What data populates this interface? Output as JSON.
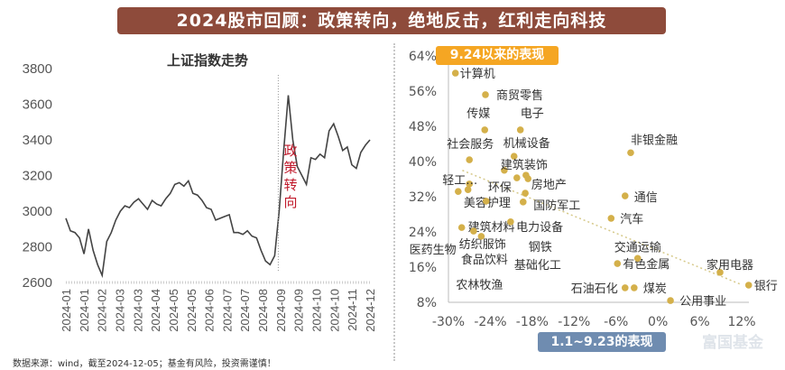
{
  "header": {
    "title": "2024股市回顾：政策转向，绝地反击，红利走向科技"
  },
  "footer": {
    "source": "数据来源：wind，截至2024-12-05；基金有风险，投资需谨慎！"
  },
  "watermark": "富国基金",
  "colors": {
    "banner": "#8e4b3b",
    "line": "#444444",
    "dot": "#d4b04a",
    "annotation": "#c0182a",
    "tag_orange": "#f5a623",
    "tag_blue": "#6f8cb0"
  },
  "chart_data": [
    {
      "type": "line",
      "title": "上证指数走势",
      "ylim": [
        2600,
        3800
      ],
      "yticks": [
        2600,
        2800,
        3000,
        3200,
        3400,
        3600,
        3800
      ],
      "xtick_labels": [
        "2024-01",
        "2024-01",
        "2024-02",
        "2024-03",
        "2024-03",
        "2024-04",
        "2024-05",
        "2024-05",
        "2024-06",
        "2024-07",
        "2024-07",
        "2024-08",
        "2024-09",
        "2024-09",
        "2024-10",
        "2024-10",
        "2024-11",
        "2024-12"
      ],
      "annotation": "政策转向",
      "values": [
        2960,
        2890,
        2880,
        2850,
        2760,
        2900,
        2780,
        2700,
        2640,
        2830,
        2880,
        2950,
        3000,
        3030,
        3020,
        3050,
        3070,
        3040,
        3010,
        3060,
        3040,
        3030,
        3070,
        3100,
        3150,
        3160,
        3140,
        3170,
        3100,
        3090,
        3060,
        3020,
        3010,
        2950,
        2960,
        2970,
        2980,
        2880,
        2880,
        2870,
        2890,
        2860,
        2850,
        2780,
        2720,
        2700,
        2750,
        3000,
        3340,
        3650,
        3400,
        3250,
        3200,
        3150,
        3300,
        3290,
        3320,
        3300,
        3450,
        3490,
        3420,
        3340,
        3360,
        3260,
        3240,
        3330,
        3370,
        3400
      ],
      "policy_turn_index": 47
    },
    {
      "type": "scatter",
      "xlabel": "1.1~9.23的表现",
      "ylabel": "9.24以来的表现",
      "xlim": [
        -30,
        12
      ],
      "ylim": [
        8,
        64
      ],
      "xticks": [
        "-30%",
        "-24%",
        "-18%",
        "-12%",
        "-6%",
        "0%",
        "6%",
        "12%"
      ],
      "yticks": [
        "8%",
        "16%",
        "24%",
        "32%",
        "40%",
        "48%",
        "56%",
        "64%"
      ],
      "trendline": {
        "from": [
          -28,
          38
        ],
        "to": [
          12,
          12
        ]
      },
      "points": [
        {
          "label": "计算机",
          "x": -29.0,
          "y": 60.1
        },
        {
          "label": "商贸零售",
          "x": -24.7,
          "y": 55.2
        },
        {
          "label": "传媒",
          "x": -24.8,
          "y": 47.2
        },
        {
          "label": "电子",
          "x": -19.7,
          "y": 47.2
        },
        {
          "label": "社会服务",
          "x": -27.0,
          "y": 40.4
        },
        {
          "label": "机械设备",
          "x": -20.6,
          "y": 41.2
        },
        {
          "label": "非银金融",
          "x": -3.9,
          "y": 42.0
        },
        {
          "label": "建筑装饰",
          "x": -22.0,
          "y": 38.0
        },
        {
          "label": "房地产",
          "x": -18.9,
          "y": 36.9
        },
        {
          "label": "环保",
          "x": -20.2,
          "y": 36.3
        },
        {
          "label": "国防军工",
          "x": -18.6,
          "y": 36.1
        },
        {
          "label": "轻工…",
          "x": -27.0,
          "y": 34.9
        },
        {
          "label": "美容护理",
          "x": -28.6,
          "y": 33.2
        },
        {
          "label": "建筑材料",
          "x": -27.2,
          "y": 33.6
        },
        {
          "label": "电力设备",
          "x": -19.0,
          "y": 32.8
        },
        {
          "label": "钢铁",
          "x": -19.3,
          "y": 30.8
        },
        {
          "label": "通信",
          "x": -4.7,
          "y": 32.2
        },
        {
          "label": "纺织服饰",
          "x": -24.6,
          "y": 31.0
        },
        {
          "label": "汽车",
          "x": -6.7,
          "y": 27.1
        },
        {
          "label": "基础化工",
          "x": -21.1,
          "y": 26.3
        },
        {
          "label": "医药生物",
          "x": -28.1,
          "y": 25.0
        },
        {
          "label": "食品饮料",
          "x": -26.4,
          "y": 24.2
        },
        {
          "label": "农林牧渔",
          "x": -25.3,
          "y": 23.0
        },
        {
          "label": "有色金属",
          "x": -5.8,
          "y": 16.8
        },
        {
          "label": "交通运输",
          "x": -2.9,
          "y": 18.0
        },
        {
          "label": "家用电器",
          "x": 8.9,
          "y": 14.8
        },
        {
          "label": "银行",
          "x": 13.0,
          "y": 11.9
        },
        {
          "label": "石油石化",
          "x": -4.7,
          "y": 11.3
        },
        {
          "label": "煤炭",
          "x": -3.4,
          "y": 11.3
        },
        {
          "label": "公用事业",
          "x": 1.8,
          "y": 8.4
        }
      ]
    }
  ]
}
